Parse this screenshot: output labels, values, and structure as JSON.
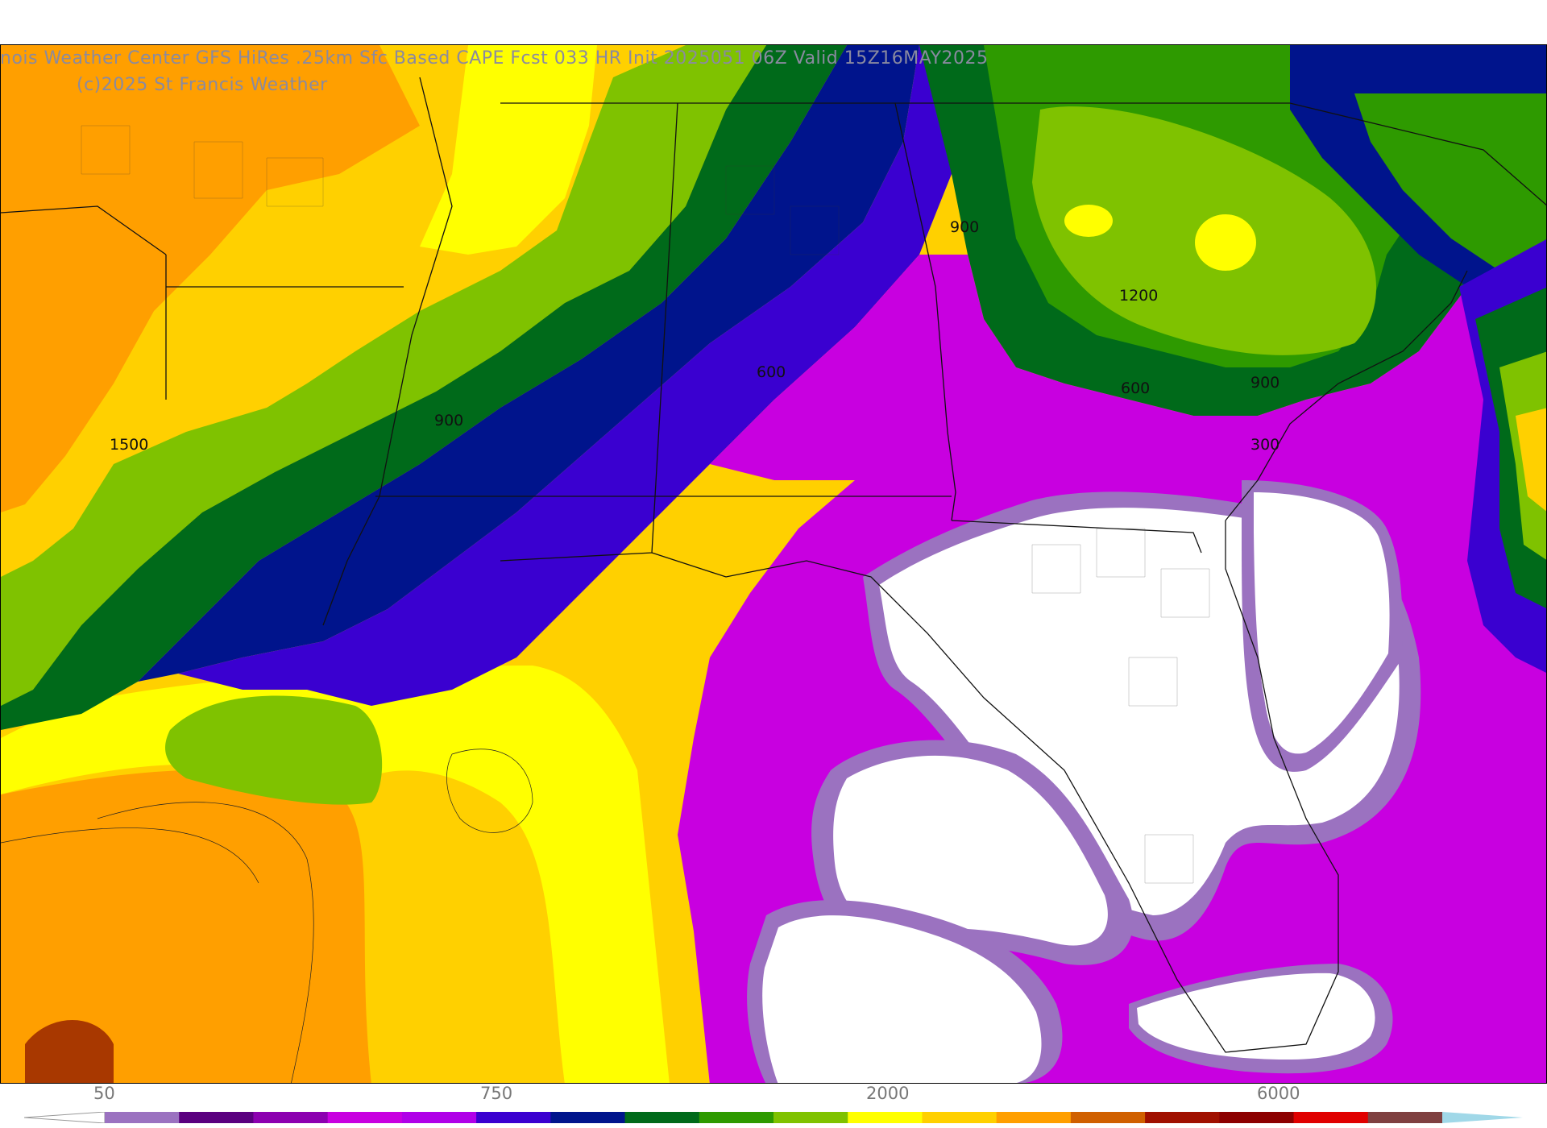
{
  "map": {
    "title": "nois Weather Center GFS HiRes .25km Sfc Based CAPE  Fcst 033 HR Init 2025051 06Z  Valid 15Z16MAY2025",
    "credit": "(c)2025 St Francis Weather",
    "contour_labels": [
      {
        "id": "cl-1500",
        "text": "1500"
      },
      {
        "id": "cl-900-west",
        "text": "900"
      },
      {
        "id": "cl-600-al",
        "text": "600"
      },
      {
        "id": "cl-900-ga",
        "text": "900"
      },
      {
        "id": "cl-1200",
        "text": "1200"
      },
      {
        "id": "cl-600-ga",
        "text": "600"
      },
      {
        "id": "cl-900-sc",
        "text": "900"
      },
      {
        "id": "cl-300",
        "text": "300"
      }
    ]
  },
  "colorbar": {
    "tick_labels": [
      "50",
      "750",
      "2000",
      "6000"
    ],
    "colors": [
      "#9b72c0",
      "#5a007f",
      "#8c00b0",
      "#c800e0",
      "#b000e8",
      "#3a00d0",
      "#00148c",
      "#006a1a",
      "#2e9a00",
      "#7fc200",
      "#ffff00",
      "#ffd000",
      "#ff9f00",
      "#d06000",
      "#a01000",
      "#8c0000",
      "#e00000",
      "#7f4040",
      "#808080",
      "#a0d8e8"
    ]
  }
}
